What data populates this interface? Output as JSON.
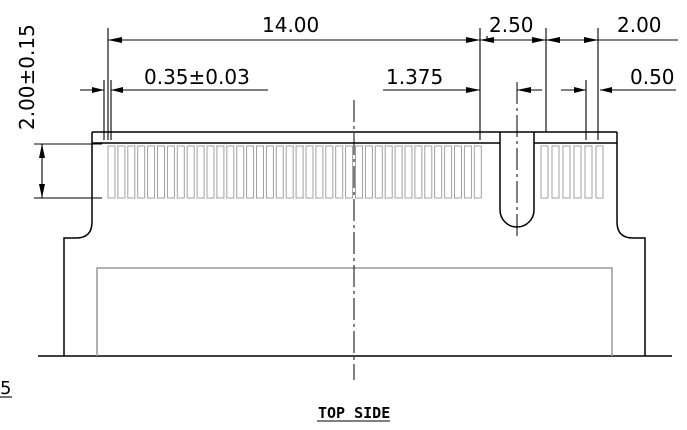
{
  "drawing": {
    "caption": "TOP SIDE",
    "corner_mark": "5",
    "dimensions": {
      "overall_width": "14.00",
      "key_width": "2.50",
      "right_width": "2.00",
      "pitch": "0.35±0.03",
      "key_offset": "1.375",
      "right_pitch": "0.50",
      "height": "2.00±0.15"
    }
  }
}
